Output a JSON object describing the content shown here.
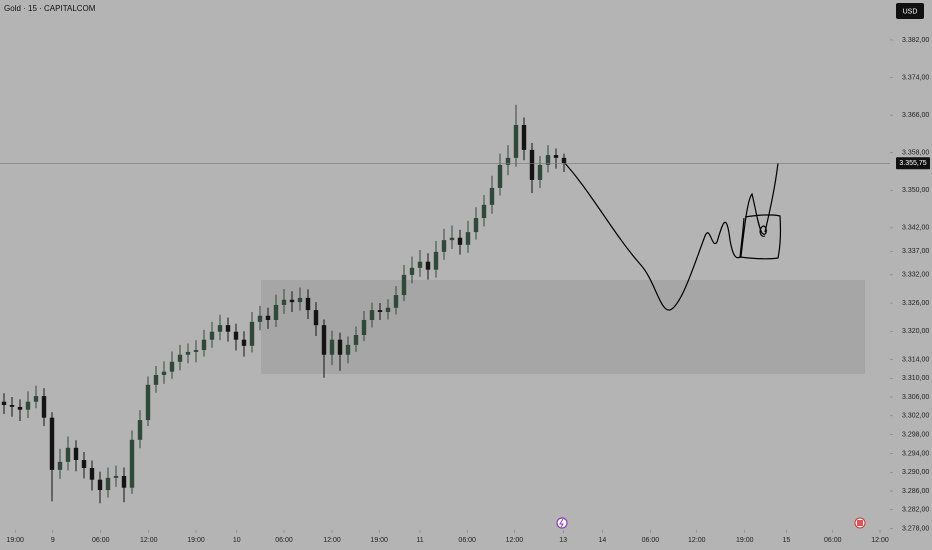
{
  "chart_data": {
    "type": "candlestick",
    "title": "Gold · 15 · CAPITALCOM",
    "currency": "USD",
    "up_color": "#2f4a38",
    "down_color": "#141414",
    "x": [
      0,
      1,
      2,
      3,
      4,
      5,
      6,
      7,
      8,
      9,
      10,
      11,
      12,
      13,
      14,
      15,
      16,
      17,
      18,
      19,
      20,
      21,
      22,
      23,
      24,
      25,
      26,
      27,
      28,
      29,
      30,
      31,
      32,
      33,
      34,
      35,
      36,
      37,
      38,
      39,
      40,
      41,
      42,
      43,
      44,
      45,
      46,
      47,
      48,
      49,
      50,
      51,
      52,
      53,
      54,
      55,
      56,
      57,
      58,
      59,
      60,
      61,
      62,
      63,
      64,
      65,
      66,
      67,
      68,
      69,
      70
    ],
    "open": [
      3305.0,
      3304.3,
      3303.9,
      3303.3,
      3305.0,
      3306.2,
      3301.6,
      3290.5,
      3292.2,
      3295.2,
      3292.6,
      3290.9,
      3288.4,
      3286.2,
      3288.8,
      3289.2,
      3286.7,
      3296.9,
      3301.1,
      3308.6,
      3310.7,
      3311.4,
      3313.5,
      3315.0,
      3315.6,
      3316.0,
      3318.2,
      3319.9,
      3321.3,
      3319.9,
      3318.2,
      3316.9,
      3322.0,
      3323.3,
      3322.4,
      3325.6,
      3326.7,
      3326.2,
      3327.1,
      3324.5,
      3321.3,
      3315.0,
      3318.2,
      3315.0,
      3317.1,
      3319.2,
      3322.4,
      3324.5,
      3324.1,
      3325.0,
      3327.7,
      3332.0,
      3333.5,
      3334.8,
      3333.1,
      3336.9,
      3339.4,
      3339.9,
      3338.4,
      3341.1,
      3344.1,
      3346.9,
      3350.5,
      3355.4,
      3356.9,
      3363.9,
      3358.6,
      3352.2,
      3355.4,
      3357.5,
      3356.9
    ],
    "high": [
      3306.8,
      3306.0,
      3305.5,
      3307.2,
      3308.4,
      3307.9,
      3302.8,
      3295.0,
      3297.6,
      3296.8,
      3294.3,
      3292.5,
      3290.1,
      3291.0,
      3291.4,
      3291.0,
      3298.9,
      3303.2,
      3310.4,
      3312.6,
      3313.6,
      3315.7,
      3317.1,
      3317.4,
      3318.1,
      3320.3,
      3322.0,
      3323.5,
      3322.9,
      3321.6,
      3320.0,
      3324.1,
      3325.4,
      3325.0,
      3327.8,
      3329.0,
      3328.5,
      3329.3,
      3328.9,
      3326.2,
      3322.5,
      3320.1,
      3319.7,
      3318.9,
      3321.0,
      3324.3,
      3326.1,
      3326.0,
      3326.8,
      3329.6,
      3334.1,
      3335.9,
      3337.3,
      3336.6,
      3339.2,
      3341.8,
      3342.5,
      3341.6,
      3343.5,
      3346.4,
      3349.0,
      3353.1,
      3357.8,
      3359.6,
      3368.2,
      3365.5,
      3360.1,
      3357.3,
      3359.6,
      3358.9,
      3357.8
    ],
    "low": [
      3302.4,
      3301.8,
      3300.9,
      3301.5,
      3303.6,
      3299.8,
      3283.8,
      3288.6,
      3290.4,
      3290.2,
      3288.7,
      3286.1,
      3283.4,
      3284.6,
      3286.9,
      3283.6,
      3285.4,
      3295.1,
      3299.8,
      3306.9,
      3308.8,
      3309.9,
      3311.7,
      3313.2,
      3313.4,
      3314.6,
      3316.5,
      3318.1,
      3317.8,
      3315.9,
      3314.6,
      3315.5,
      3320.2,
      3320.5,
      3320.9,
      3323.7,
      3324.1,
      3324.4,
      3322.6,
      3319.0,
      3310.1,
      3312.8,
      3311.6,
      3313.2,
      3315.6,
      3317.9,
      3320.8,
      3322.4,
      3322.5,
      3323.6,
      3326.4,
      3330.2,
      3331.6,
      3331.0,
      3331.4,
      3335.2,
      3337.5,
      3336.3,
      3336.7,
      3339.5,
      3342.3,
      3345.0,
      3348.9,
      3353.2,
      3355.0,
      3356.4,
      3349.4,
      3350.5,
      3353.8,
      3354.6,
      3353.9
    ],
    "close": [
      3304.3,
      3303.9,
      3303.3,
      3305.0,
      3306.2,
      3301.6,
      3290.5,
      3292.2,
      3295.2,
      3292.6,
      3290.9,
      3288.4,
      3286.2,
      3288.8,
      3289.2,
      3286.7,
      3296.9,
      3301.1,
      3308.6,
      3310.7,
      3311.4,
      3313.5,
      3315.0,
      3315.6,
      3316.0,
      3318.2,
      3319.9,
      3321.3,
      3319.9,
      3318.2,
      3316.9,
      3322.0,
      3323.3,
      3322.4,
      3325.6,
      3326.7,
      3326.2,
      3327.1,
      3324.5,
      3321.3,
      3315.0,
      3318.2,
      3315.0,
      3317.1,
      3319.2,
      3322.4,
      3324.5,
      3324.1,
      3325.0,
      3327.7,
      3332.0,
      3333.5,
      3334.8,
      3333.1,
      3336.9,
      3339.4,
      3339.9,
      3338.4,
      3341.1,
      3344.1,
      3346.9,
      3350.5,
      3355.4,
      3356.9,
      3363.9,
      3358.6,
      3352.2,
      3355.4,
      3357.5,
      3356.9,
      3355.75
    ],
    "last_price": {
      "value": 3355.75,
      "label": "3.355,75"
    },
    "xlim": [
      -0.5,
      110.75
    ],
    "ylim": [
      3277.7,
      3390.5
    ],
    "xticks": [
      {
        "value": 1.4,
        "label": "19:00"
      },
      {
        "value": 6.1,
        "label": "9"
      },
      {
        "value": 12.1,
        "label": "06:00"
      },
      {
        "value": 18.1,
        "label": "12:00"
      },
      {
        "value": 24.0,
        "label": "19:00"
      },
      {
        "value": 29.1,
        "label": "10"
      },
      {
        "value": 35.0,
        "label": "06:00"
      },
      {
        "value": 41.0,
        "label": "12:00"
      },
      {
        "value": 46.9,
        "label": "19:00"
      },
      {
        "value": 52.0,
        "label": "11"
      },
      {
        "value": 57.9,
        "label": "06:00"
      },
      {
        "value": 63.8,
        "label": "12:00"
      },
      {
        "value": 69.9,
        "label": "13"
      },
      {
        "value": 74.8,
        "label": "14"
      },
      {
        "value": 80.8,
        "label": "06:00"
      },
      {
        "value": 86.6,
        "label": "12:00"
      },
      {
        "value": 92.6,
        "label": "19:00"
      },
      {
        "value": 97.8,
        "label": "15"
      },
      {
        "value": 103.6,
        "label": "06:00"
      },
      {
        "value": 109.5,
        "label": "12:00"
      }
    ],
    "yticks": [
      {
        "value": 3382,
        "label": "3.382,00"
      },
      {
        "value": 3374,
        "label": "3.374,00"
      },
      {
        "value": 3366,
        "label": "3.366,00"
      },
      {
        "value": 3358,
        "label": "3.358,00"
      },
      {
        "value": 3350,
        "label": "3.350,00"
      },
      {
        "value": 3342,
        "label": "3.342,00"
      },
      {
        "value": 3337,
        "label": "3.337,00"
      },
      {
        "value": 3332,
        "label": "3.332,00"
      },
      {
        "value": 3326,
        "label": "3.326,00"
      },
      {
        "value": 3320,
        "label": "3.320,00"
      },
      {
        "value": 3314,
        "label": "3.314,00"
      },
      {
        "value": 3310,
        "label": "3.310,00"
      },
      {
        "value": 3306,
        "label": "3.306,00"
      },
      {
        "value": 3302,
        "label": "3.302,00"
      },
      {
        "value": 3298,
        "label": "3.298,00"
      },
      {
        "value": 3294,
        "label": "3.294,00"
      },
      {
        "value": 3290,
        "label": "3.290,00"
      },
      {
        "value": 3286,
        "label": "3.286,00"
      },
      {
        "value": 3282,
        "label": "3.282,00"
      },
      {
        "value": 3278,
        "label": "3.278,00"
      }
    ]
  }
}
